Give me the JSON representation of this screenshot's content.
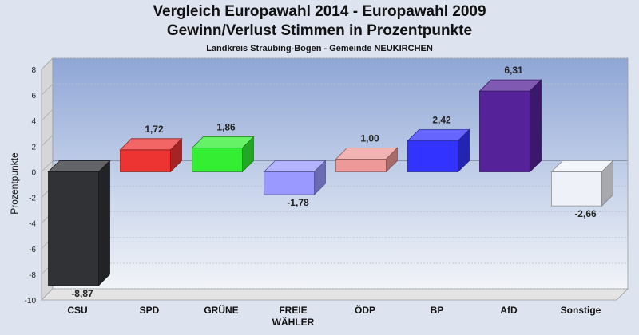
{
  "title": "Vergleich Europawahl 2014 - Europawahl 2009",
  "subtitle": "Gewinn/Verlust Stimmen in Prozentpunkte",
  "subsubtitle": "Landkreis Straubing-Bogen - Gemeinde NEUKIRCHEN",
  "chart_data": {
    "type": "bar",
    "title": "Vergleich Europawahl 2014 - Europawahl 2009",
    "subtitle": "Gewinn/Verlust Stimmen in Prozentpunkte",
    "xlabel": "",
    "ylabel": "Prozentpunkte",
    "ylim": [
      -10,
      8
    ],
    "yticks": [
      8,
      6,
      4,
      2,
      0,
      -2,
      -4,
      -6,
      -8,
      -10
    ],
    "grid": true,
    "categories": [
      [
        "CSU"
      ],
      [
        "SPD"
      ],
      [
        "GRÜNE"
      ],
      [
        "FREIE",
        "WÄHLER"
      ],
      [
        "ÖDP"
      ],
      [
        "BP"
      ],
      [
        "AfD"
      ],
      [
        "Sonstige"
      ]
    ],
    "values": [
      -8.87,
      1.72,
      1.86,
      -1.78,
      1.0,
      2.42,
      6.31,
      -2.66
    ],
    "value_labels": [
      "-8,87",
      "1,72",
      "1,86",
      "-1,78",
      "1,00",
      "2,42",
      "6,31",
      "-2,66"
    ],
    "colors": [
      "#303236",
      "#ee3333",
      "#33ee33",
      "#9999ff",
      "#ee9999",
      "#3333ff",
      "#552299",
      "#eef2f8"
    ]
  }
}
